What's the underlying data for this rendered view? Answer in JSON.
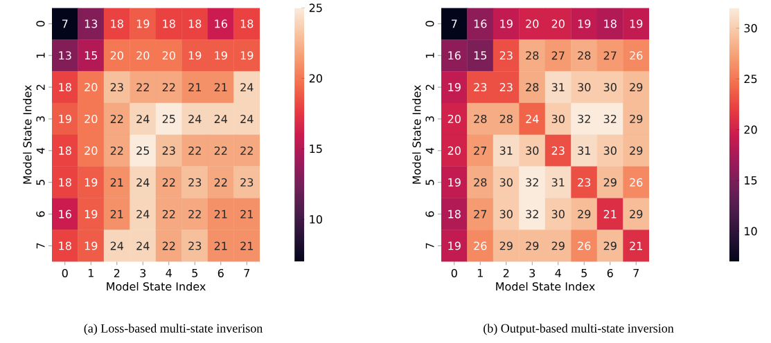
{
  "chart_data": [
    {
      "type": "heatmap",
      "xlabel": "Model State Index",
      "ylabel": "Model State Index",
      "categories": [
        "0",
        "1",
        "2",
        "3",
        "4",
        "5",
        "6",
        "7"
      ],
      "y_categories": [
        "0",
        "1",
        "2",
        "3",
        "4",
        "5",
        "6",
        "7"
      ],
      "cells": [
        [
          7,
          13,
          18,
          19,
          18,
          18,
          16,
          18
        ],
        [
          13,
          15,
          20,
          20,
          20,
          19,
          19,
          19
        ],
        [
          18,
          20,
          23,
          22,
          22,
          21,
          21,
          24
        ],
        [
          19,
          20,
          22,
          24,
          25,
          24,
          24,
          24
        ],
        [
          18,
          20,
          22,
          25,
          23,
          22,
          22,
          22
        ],
        [
          18,
          19,
          21,
          24,
          22,
          23,
          22,
          23
        ],
        [
          16,
          19,
          21,
          24,
          22,
          22,
          21,
          21
        ],
        [
          18,
          19,
          24,
          24,
          22,
          23,
          21,
          21
        ]
      ],
      "clim": [
        7,
        25
      ],
      "cticks": [
        10,
        15,
        20,
        25
      ],
      "data_labels": true,
      "annotations": [
        "(a) Loss-based multi-state inverison"
      ]
    },
    {
      "type": "heatmap",
      "xlabel": "Model State Index",
      "ylabel": "Model State Index",
      "categories": [
        "0",
        "1",
        "2",
        "3",
        "4",
        "5",
        "6",
        "7"
      ],
      "y_categories": [
        "0",
        "1",
        "2",
        "3",
        "4",
        "5",
        "6",
        "7"
      ],
      "cells": [
        [
          7,
          16,
          19,
          20,
          20,
          19,
          18,
          19
        ],
        [
          16,
          15,
          23,
          28,
          27,
          28,
          27,
          26
        ],
        [
          19,
          23,
          23,
          28,
          31,
          30,
          30,
          29
        ],
        [
          20,
          28,
          28,
          24,
          30,
          32,
          32,
          29
        ],
        [
          20,
          27,
          31,
          30,
          23,
          31,
          30,
          29
        ],
        [
          19,
          28,
          30,
          32,
          31,
          23,
          29,
          26
        ],
        [
          18,
          27,
          30,
          32,
          30,
          29,
          21,
          29
        ],
        [
          19,
          26,
          29,
          29,
          29,
          26,
          29,
          21
        ]
      ],
      "clim": [
        7,
        32
      ],
      "cticks": [
        10,
        15,
        20,
        25,
        30
      ],
      "data_labels": true,
      "annotations": [
        "(b) Output-based multi-state inversion"
      ]
    }
  ]
}
